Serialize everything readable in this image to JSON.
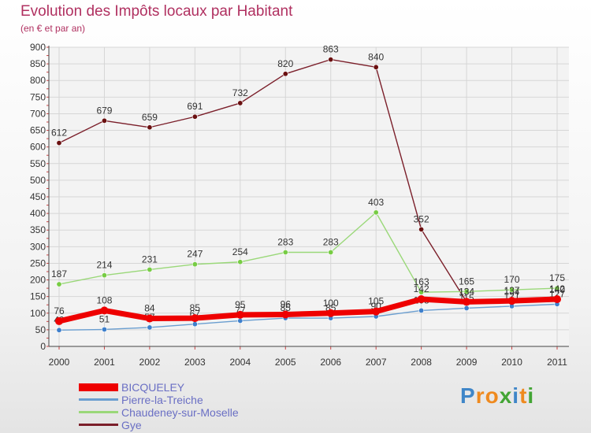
{
  "chart_data": {
    "type": "line",
    "title": "Evolution des Impôts locaux par Habitant",
    "subtitle": "(en € et par an)",
    "xlabel": "",
    "ylabel": "",
    "ylim": [
      0,
      900
    ],
    "yticks": [
      0,
      50,
      100,
      150,
      200,
      250,
      300,
      350,
      400,
      450,
      500,
      550,
      600,
      650,
      700,
      750,
      800,
      850,
      900
    ],
    "categories": [
      "2000",
      "2001",
      "2002",
      "2003",
      "2004",
      "2005",
      "2006",
      "2007",
      "2008",
      "2009",
      "2010",
      "2011"
    ],
    "grid": true,
    "legend_position": "bottom-left",
    "series": [
      {
        "name": "Gye",
        "color": "#7b1f2a",
        "marker": "#6a1010",
        "values": [
          612,
          679,
          659,
          691,
          732,
          820,
          863,
          840,
          352,
          134,
          134,
          140
        ]
      },
      {
        "name": "Chaudeney-sur-Moselle",
        "color": "#9ad879",
        "marker": "#77cc44",
        "values": [
          187,
          214,
          231,
          247,
          254,
          283,
          283,
          403,
          163,
          165,
          170,
          175
        ]
      },
      {
        "name": "Pierre-la-Treiche",
        "color": "#6a9ed0",
        "marker": "#3d7fcc",
        "values": [
          49,
          51,
          57,
          67,
          77,
          85,
          85,
          90,
          108,
          115,
          121,
          127
        ]
      },
      {
        "name": "BICQUELEY",
        "color": "#ee0000",
        "marker": "#ee0000",
        "values": [
          76,
          108,
          84,
          85,
          95,
          96,
          100,
          105,
          142,
          134,
          137,
          142
        ]
      }
    ]
  },
  "legend": {
    "items": [
      {
        "name": "BICQUELEY",
        "color": "#ee0000"
      },
      {
        "name": "Pierre-la-Treiche",
        "color": "#6a9ed0"
      },
      {
        "name": "Chaudeney-sur-Moselle",
        "color": "#9ad879"
      },
      {
        "name": "Gye",
        "color": "#7b1f2a"
      }
    ]
  },
  "brand": {
    "letters": [
      "P",
      "r",
      "o",
      "x",
      "i",
      "t",
      "i"
    ],
    "colors": [
      "#3f86c8",
      "#ef8a1f",
      "#ef8a1f",
      "#43a535",
      "#3f86c8",
      "#ef8a1f",
      "#43a535"
    ]
  }
}
